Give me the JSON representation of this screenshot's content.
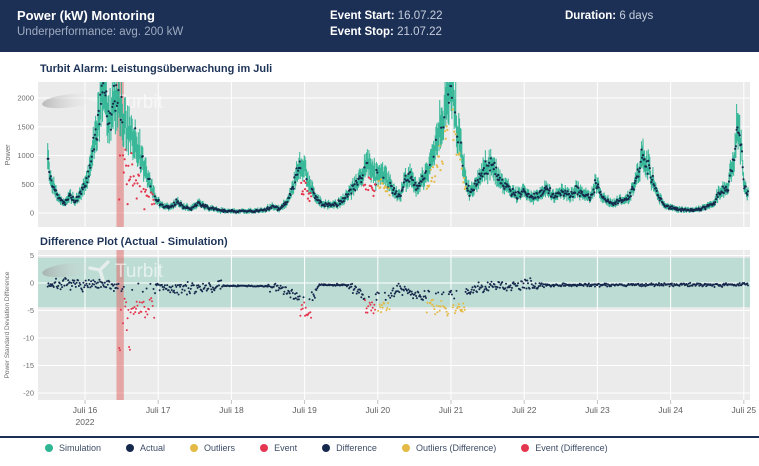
{
  "header": {
    "title": "Power (kW) Montoring",
    "subtitle": "Underperformance: avg. 200 kW",
    "event_start_label": "Event Start:",
    "event_start_value": "16.07.22",
    "event_stop_label": "Event Stop:",
    "event_stop_value": "21.07.22",
    "duration_label": "Duration:",
    "duration_value": "6 days"
  },
  "watermark_text": "Turbit",
  "colors": {
    "header_bg": "#1c3055",
    "simulation": "#2eb593",
    "actual": "#16294d",
    "outliers": "#e3ba45",
    "event": "#e4374f",
    "event_band": "#e06c6c",
    "band_mint": "#bddcd3",
    "plot_bg": "#ebebeb",
    "grid": "#ffffff",
    "tick_text": "#6e6e6e",
    "title_text": "#1d3357"
  },
  "legend": [
    {
      "label": "Simulation",
      "color": "#2eb593"
    },
    {
      "label": "Actual",
      "color": "#16294d"
    },
    {
      "label": "Outliers",
      "color": "#e3ba45"
    },
    {
      "label": "Event",
      "color": "#e4374f"
    },
    {
      "label": "Difference",
      "color": "#16294d"
    },
    {
      "label": "Outliers (Difference)",
      "color": "#e3ba45"
    },
    {
      "label": "Event (Difference)",
      "color": "#e4374f"
    }
  ],
  "chart_data": [
    {
      "type": "scatter",
      "title": "Turbit Alarm: Leistungsüberwachung im Juli",
      "ylabel": "Power",
      "yticks": [
        0,
        500,
        1000,
        1500,
        2000
      ],
      "ylim": [
        -243,
        2278
      ],
      "xlim_days": [
        15.358,
        25.082
      ],
      "x_tick_days": [
        16,
        17,
        18,
        19,
        20,
        21,
        22,
        23,
        24,
        25
      ],
      "x_tick_labels": [
        "Juli 16",
        "Juli 17",
        "Juli 18",
        "Juli 19",
        "Juli 20",
        "Juli 21",
        "Juli 22",
        "Juli 23",
        "Juli 24",
        "Juli 25"
      ],
      "x_sublabel": "2022",
      "grid": true,
      "legend_entries": [
        "Simulation",
        "Actual",
        "Outliers",
        "Event"
      ],
      "event_band_days": [
        16.43,
        16.53
      ],
      "data_range_days": [
        15.49,
        25.06
      ],
      "sample_step_days": 0.0104,
      "sim_spread_kw": {
        "base": 30,
        "frac": 0.17
      },
      "actual_noise_kw": {
        "base": 12,
        "frac": 0.055
      },
      "simulation_keyframes": [
        [
          15.49,
          950
        ],
        [
          15.53,
          650
        ],
        [
          15.58,
          400
        ],
        [
          15.65,
          250
        ],
        [
          15.72,
          180
        ],
        [
          15.8,
          300
        ],
        [
          15.87,
          200
        ],
        [
          15.95,
          350
        ],
        [
          16.02,
          550
        ],
        [
          16.08,
          900
        ],
        [
          16.14,
          1300
        ],
        [
          16.2,
          1850
        ],
        [
          16.26,
          2050
        ],
        [
          16.32,
          1650
        ],
        [
          16.38,
          1800
        ],
        [
          16.44,
          1950
        ],
        [
          16.5,
          1750
        ],
        [
          16.56,
          1450
        ],
        [
          16.62,
          1250
        ],
        [
          16.68,
          1380
        ],
        [
          16.74,
          1050
        ],
        [
          16.8,
          820
        ],
        [
          16.88,
          520
        ],
        [
          16.96,
          280
        ],
        [
          17.05,
          130
        ],
        [
          17.15,
          90
        ],
        [
          17.25,
          190
        ],
        [
          17.35,
          110
        ],
        [
          17.45,
          80
        ],
        [
          17.55,
          170
        ],
        [
          17.65,
          110
        ],
        [
          17.75,
          70
        ],
        [
          17.85,
          45
        ],
        [
          17.95,
          35
        ],
        [
          18.2,
          32
        ],
        [
          18.45,
          45
        ],
        [
          18.55,
          110
        ],
        [
          18.65,
          75
        ],
        [
          18.75,
          190
        ],
        [
          18.85,
          480
        ],
        [
          18.92,
          830
        ],
        [
          19.0,
          780
        ],
        [
          19.08,
          480
        ],
        [
          19.16,
          240
        ],
        [
          19.25,
          150
        ],
        [
          19.35,
          130
        ],
        [
          19.45,
          160
        ],
        [
          19.55,
          260
        ],
        [
          19.65,
          420
        ],
        [
          19.75,
          580
        ],
        [
          19.83,
          820
        ],
        [
          19.9,
          840
        ],
        [
          19.97,
          620
        ],
        [
          20.04,
          720
        ],
        [
          20.1,
          640
        ],
        [
          20.17,
          480
        ],
        [
          20.24,
          340
        ],
        [
          20.31,
          310
        ],
        [
          20.38,
          560
        ],
        [
          20.45,
          640
        ],
        [
          20.52,
          440
        ],
        [
          20.6,
          520
        ],
        [
          20.68,
          720
        ],
        [
          20.76,
          1050
        ],
        [
          20.84,
          1450
        ],
        [
          20.9,
          1650
        ],
        [
          20.96,
          2000
        ],
        [
          21.0,
          2350
        ],
        [
          21.04,
          2050
        ],
        [
          21.09,
          1480
        ],
        [
          21.14,
          1050
        ],
        [
          21.19,
          620
        ],
        [
          21.25,
          350
        ],
        [
          21.32,
          420
        ],
        [
          21.4,
          620
        ],
        [
          21.48,
          800
        ],
        [
          21.55,
          860
        ],
        [
          21.62,
          700
        ],
        [
          21.7,
          520
        ],
        [
          21.8,
          400
        ],
        [
          21.9,
          310
        ],
        [
          22.0,
          360
        ],
        [
          22.1,
          260
        ],
        [
          22.2,
          310
        ],
        [
          22.3,
          420
        ],
        [
          22.42,
          290
        ],
        [
          22.52,
          360
        ],
        [
          22.62,
          300
        ],
        [
          22.72,
          410
        ],
        [
          22.82,
          310
        ],
        [
          22.9,
          250
        ],
        [
          22.98,
          540
        ],
        [
          23.06,
          280
        ],
        [
          23.18,
          160
        ],
        [
          23.3,
          210
        ],
        [
          23.42,
          260
        ],
        [
          23.52,
          520
        ],
        [
          23.62,
          1020
        ],
        [
          23.7,
          780
        ],
        [
          23.8,
          380
        ],
        [
          23.9,
          150
        ],
        [
          24.0,
          85
        ],
        [
          24.15,
          60
        ],
        [
          24.3,
          55
        ],
        [
          24.45,
          75
        ],
        [
          24.58,
          160
        ],
        [
          24.68,
          360
        ],
        [
          24.78,
          470
        ],
        [
          24.86,
          850
        ],
        [
          24.91,
          1560
        ],
        [
          24.96,
          1250
        ],
        [
          25.0,
          520
        ],
        [
          25.04,
          330
        ],
        [
          25.06,
          380
        ]
      ],
      "event_windows": [
        {
          "start": 16.46,
          "end": 16.95,
          "factor": 0.55,
          "deep": true
        },
        {
          "start": 18.94,
          "end": 19.09,
          "factor": 0.55,
          "deep": false
        },
        {
          "start": 19.8,
          "end": 19.97,
          "factor": 0.6,
          "deep": false
        }
      ],
      "outlier_windows": [
        {
          "start": 20.0,
          "end": 20.17,
          "factor": 0.72
        },
        {
          "start": 20.66,
          "end": 20.97,
          "factor": 0.65
        },
        {
          "start": 21.02,
          "end": 21.2,
          "factor": 0.68
        }
      ]
    },
    {
      "type": "scatter",
      "title": "Difference Plot (Actual - Simulation)",
      "ylabel": "Power Standard Deviation Difference",
      "yticks": [
        5,
        0,
        -5,
        -10,
        -15,
        -20
      ],
      "ylim": [
        -21.3,
        6.0
      ],
      "xlim_days": [
        15.358,
        25.082
      ],
      "grid": true,
      "legend_entries": [
        "Difference",
        "Outliers (Difference)",
        "Event (Difference)"
      ],
      "tolerance_band": {
        "low": -4.4,
        "high": 4.6
      },
      "event_band_days": [
        16.43,
        16.53
      ],
      "data_range_days": [
        15.49,
        25.06
      ],
      "sample_step_days": 0.0104,
      "difference_level_keyframes": [
        [
          15.49,
          -0.2
        ],
        [
          16.4,
          -0.5
        ],
        [
          17.0,
          -1.0
        ],
        [
          17.5,
          -1.0
        ],
        [
          17.9,
          -0.5
        ],
        [
          18.5,
          -0.6
        ],
        [
          18.8,
          -1.5
        ],
        [
          18.94,
          -3.0
        ],
        [
          19.12,
          -2.0
        ],
        [
          19.2,
          -0.3
        ],
        [
          19.6,
          -0.4
        ],
        [
          19.75,
          -1.5
        ],
        [
          19.8,
          -2.5
        ],
        [
          20.0,
          -2.0
        ],
        [
          20.2,
          -2.2
        ],
        [
          20.3,
          -0.8
        ],
        [
          20.45,
          -1.6
        ],
        [
          20.6,
          -2.2
        ],
        [
          21.0,
          -1.8
        ],
        [
          21.15,
          -2.0
        ],
        [
          21.3,
          -1.2
        ],
        [
          21.6,
          -0.6
        ],
        [
          22.0,
          -0.5
        ],
        [
          22.2,
          -0.35
        ],
        [
          25.06,
          -0.3
        ]
      ],
      "spread_windows": [
        {
          "start": 17.88,
          "end": 18.5,
          "spread": 0.12
        },
        {
          "start": 19.15,
          "end": 19.6,
          "spread": 0.18
        },
        {
          "start": 22.2,
          "end": 25.08,
          "spread": 0.3
        }
      ],
      "default_spread": 1.0,
      "diff_windows": [
        {
          "start": 16.46,
          "end": 16.63,
          "kind": "event",
          "range": [
            -13.0,
            -2.0
          ]
        },
        {
          "start": 16.63,
          "end": 16.95,
          "kind": "event",
          "range": [
            -6.5,
            -2.5
          ]
        },
        {
          "start": 18.94,
          "end": 19.09,
          "kind": "event",
          "range": [
            -6.5,
            -3.5
          ]
        },
        {
          "start": 19.8,
          "end": 19.97,
          "kind": "event",
          "range": [
            -5.5,
            -3.0
          ]
        },
        {
          "start": 20.0,
          "end": 20.17,
          "kind": "outlier",
          "range": [
            -6.0,
            -3.0
          ]
        },
        {
          "start": 20.66,
          "end": 20.97,
          "kind": "outlier",
          "range": [
            -6.0,
            -3.0
          ]
        },
        {
          "start": 21.02,
          "end": 21.2,
          "kind": "outlier",
          "range": [
            -5.5,
            -3.5
          ]
        }
      ]
    }
  ]
}
